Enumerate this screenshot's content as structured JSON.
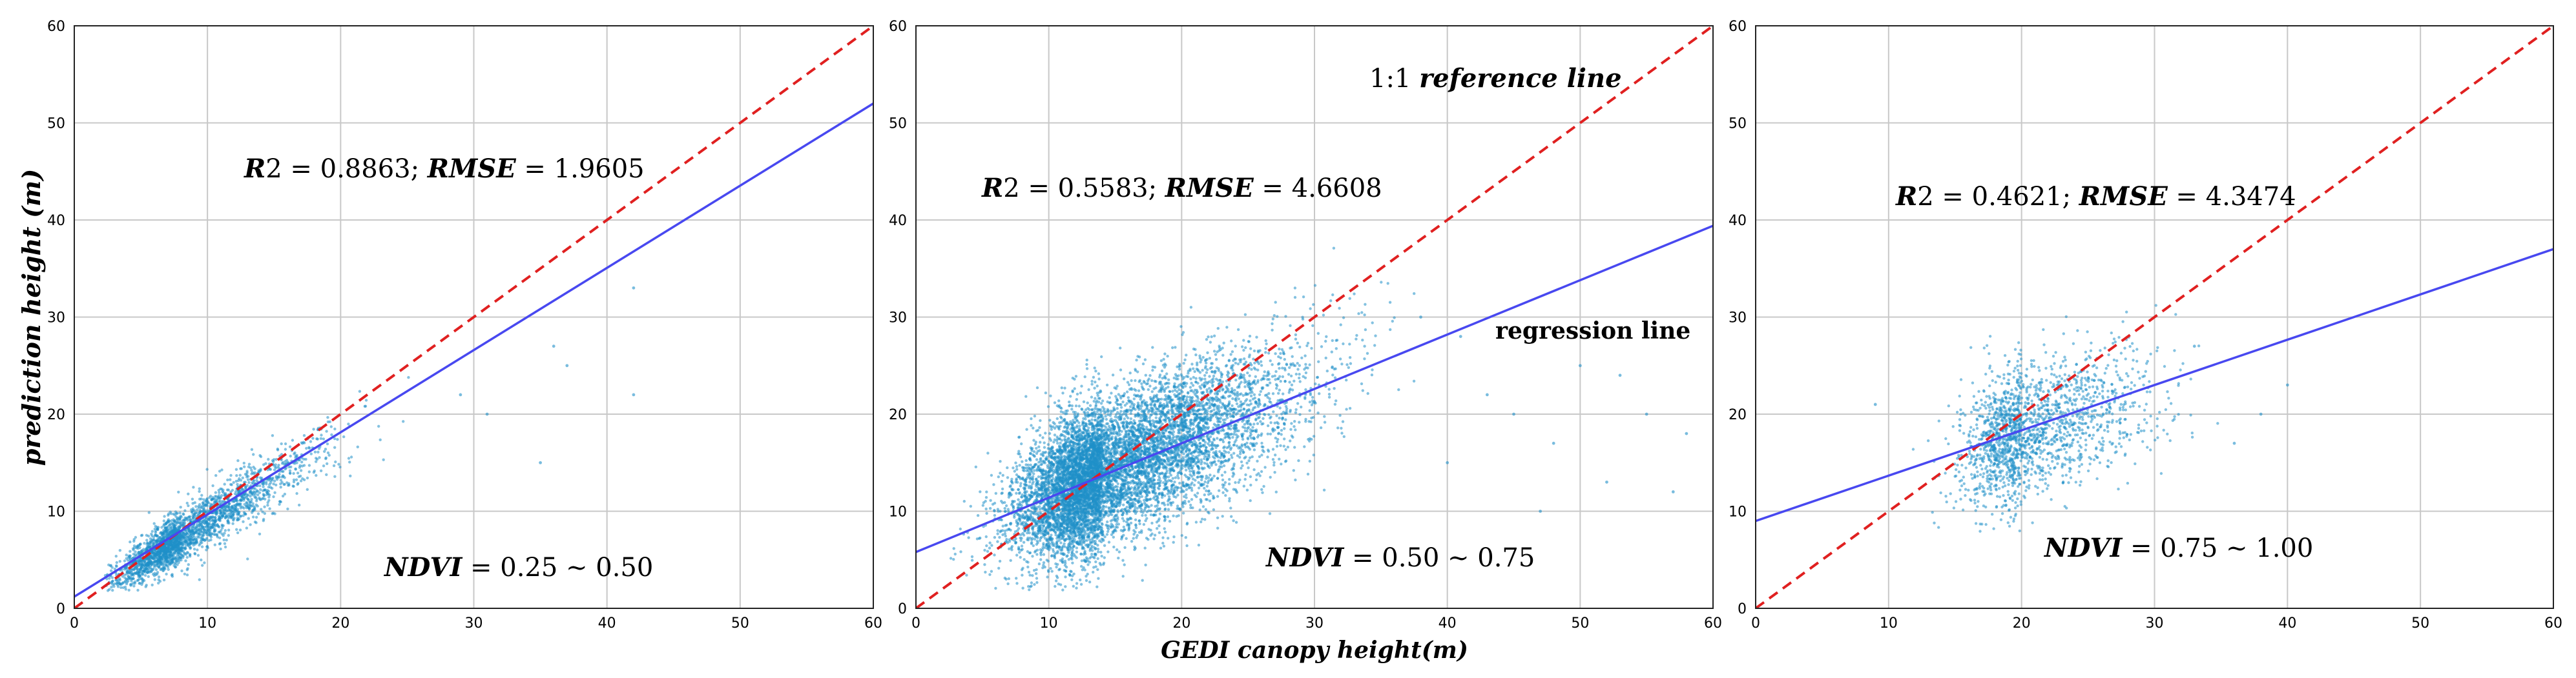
{
  "chart_data": [
    {
      "type": "scatter",
      "xlim": [
        0,
        60
      ],
      "ylim": [
        0,
        60
      ],
      "xticks": [
        "0",
        "10",
        "20",
        "30",
        "40",
        "50",
        "60"
      ],
      "yticks": [
        "0",
        "10",
        "20",
        "30",
        "40",
        "50",
        "60"
      ],
      "ylabel": "prediction height (m)",
      "grid": true,
      "annotations": {
        "stats": "R2 = 0.8863; RMSE = 1.9605",
        "stats_parts": [
          "R",
          "2 = 0.8863; ",
          "RMSE",
          " = 1.9605"
        ],
        "ndvi": "NDVI = 0.25 ~ 0.50",
        "ndvi_parts": [
          "NDVI",
          " = 0.25 ~ 0.50"
        ]
      },
      "reference_line": {
        "slope": 1,
        "intercept": 0,
        "color": "#e02020"
      },
      "regression_line": {
        "x": [
          0,
          60
        ],
        "y": [
          1.2,
          52
        ],
        "color": "#4848f0"
      },
      "scatter_cloud": {
        "color": "#1f8fc8",
        "n": 2600,
        "x_range": [
          2.3,
          35
        ],
        "x_center": 8,
        "x_spread": 5,
        "slope": 0.86,
        "intercept": 0.4,
        "noise": 0.9,
        "noise_growth": 0.05
      },
      "outliers": [
        [
          31,
          20
        ],
        [
          35,
          15
        ],
        [
          40,
          40
        ],
        [
          42,
          33
        ],
        [
          42,
          22
        ],
        [
          37,
          25
        ],
        [
          36,
          27
        ],
        [
          29,
          22
        ]
      ]
    },
    {
      "type": "scatter",
      "xlim": [
        0,
        60
      ],
      "ylim": [
        0,
        60
      ],
      "xticks": [
        "0",
        "10",
        "20",
        "30",
        "40",
        "50",
        "60"
      ],
      "yticks": [
        "0",
        "10",
        "20",
        "30",
        "40",
        "50",
        "60"
      ],
      "xlabel": "GEDI canopy height(m)",
      "grid": true,
      "annotations": {
        "stats": "R2 = 0.5583; RMSE = 4.6608",
        "stats_parts": [
          "R",
          "2 = 0.5583; ",
          "RMSE",
          " = 4.6608"
        ],
        "ndvi": "NDVI = 0.50 ~ 0.75",
        "ndvi_parts": [
          "NDVI",
          " = 0.50 ~ 0.75"
        ],
        "reference_label": "1:1 reference line",
        "reference_label_parts": [
          "1:1 ",
          "reference line"
        ],
        "regression_label": "regression line"
      },
      "reference_line": {
        "slope": 1,
        "intercept": 0,
        "color": "#e02020"
      },
      "regression_line": {
        "x": [
          0,
          60
        ],
        "y": [
          5.8,
          39.4
        ],
        "color": "#4848f0"
      },
      "scatter_cloud": {
        "color": "#1f8fc8",
        "n": 9000,
        "x_range": [
          2.3,
          38
        ],
        "x_center": 14,
        "x_spread": 7,
        "slope": 0.6,
        "intercept": 5.5,
        "noise": 3.4,
        "noise_growth": 0.02
      },
      "outliers": [
        [
          40,
          15
        ],
        [
          45,
          20
        ],
        [
          48,
          17
        ],
        [
          52,
          13
        ],
        [
          55,
          20
        ],
        [
          58,
          18
        ],
        [
          50,
          25
        ],
        [
          43,
          22
        ],
        [
          47,
          10
        ],
        [
          53,
          24
        ],
        [
          57,
          12
        ],
        [
          41,
          28
        ],
        [
          38,
          30
        ]
      ]
    },
    {
      "type": "scatter",
      "xlim": [
        0,
        60
      ],
      "ylim": [
        0,
        60
      ],
      "xticks": [
        "0",
        "10",
        "20",
        "30",
        "40",
        "50",
        "60"
      ],
      "yticks": [
        "0",
        "10",
        "20",
        "30",
        "40",
        "50",
        "60"
      ],
      "grid": true,
      "annotations": {
        "stats": "R2 = 0.4621; RMSE = 4.3474",
        "stats_parts": [
          "R",
          "2 = 0.4621; ",
          "RMSE",
          " = 4.3474"
        ],
        "ndvi": "NDVI = 0.75 ~ 1.00",
        "ndvi_parts": [
          "NDVI",
          " = 0.75 ~ 1.00"
        ]
      },
      "reference_line": {
        "slope": 1,
        "intercept": 0,
        "color": "#e02020"
      },
      "regression_line": {
        "x": [
          0,
          60
        ],
        "y": [
          9,
          37
        ],
        "color": "#4848f0"
      },
      "scatter_cloud": {
        "color": "#1f8fc8",
        "n": 1800,
        "x_range": [
          5,
          37
        ],
        "x_center": 20,
        "x_spread": 5,
        "slope": 0.45,
        "intercept": 9,
        "noise": 3.0,
        "noise_growth": 0.02
      },
      "outliers": [
        [
          40,
          23
        ],
        [
          38,
          20
        ],
        [
          36,
          17
        ],
        [
          9,
          21
        ],
        [
          33,
          27
        ]
      ]
    }
  ]
}
